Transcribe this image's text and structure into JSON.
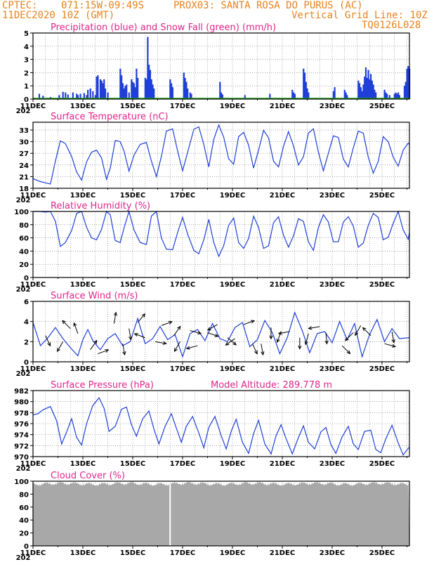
{
  "header": {
    "source": "CPTEC:",
    "coords": "071:15W-09:49S",
    "station": "PROX03: SANTA ROSA DO PURUS (AC)",
    "run": "11DEC2020 10Z (GMT)",
    "grid_note": "Vertical Grid Line: 10Z",
    "code": "TQ0126L028"
  },
  "x_axis": {
    "labels": [
      "11DEC",
      "13DEC",
      "15DEC",
      "17DEC",
      "19DEC",
      "21DEC",
      "23DEC",
      "25DEC"
    ],
    "range_days": [
      0,
      15.1
    ],
    "year_fragment": "202"
  },
  "colors": {
    "curve": "#1f3fd8",
    "snow": "#1aa01a",
    "title": "#e0258a",
    "header": "#e8821e",
    "cloud": "#a8a8a8"
  },
  "chart_data": [
    {
      "type": "bar",
      "title": "Precipitation (blue) and Snow Fall (green) (mm/h)",
      "ylim": [
        0,
        5
      ],
      "yticks": [
        0,
        1,
        2,
        3,
        4,
        5
      ],
      "series": [
        {
          "name": "Precipitation",
          "color": "#1f3fd8",
          "points": [
            [
              0.25,
              0.4
            ],
            [
              0.4,
              0.25
            ],
            [
              0.7,
              0.15
            ],
            [
              1.05,
              0.3
            ],
            [
              1.2,
              0.55
            ],
            [
              1.3,
              0.5
            ],
            [
              1.4,
              0.35
            ],
            [
              1.6,
              0.5
            ],
            [
              1.75,
              0.4
            ],
            [
              1.8,
              0.3
            ],
            [
              1.9,
              0.4
            ],
            [
              2.05,
              0.45
            ],
            [
              2.15,
              0.3
            ],
            [
              2.2,
              0.7
            ],
            [
              2.3,
              0.8
            ],
            [
              2.4,
              0.6
            ],
            [
              2.5,
              0.3
            ],
            [
              2.55,
              1.7
            ],
            [
              2.6,
              1.8
            ],
            [
              2.7,
              1.5
            ],
            [
              2.75,
              1.4
            ],
            [
              2.8,
              1.2
            ],
            [
              2.85,
              1.5
            ],
            [
              2.9,
              0.8
            ],
            [
              3.0,
              0.5
            ],
            [
              3.5,
              2.3
            ],
            [
              3.55,
              1.8
            ],
            [
              3.6,
              1.2
            ],
            [
              3.65,
              0.8
            ],
            [
              3.7,
              1.0
            ],
            [
              3.75,
              1.1
            ],
            [
              3.85,
              0.5
            ],
            [
              3.95,
              1.5
            ],
            [
              4.0,
              1.3
            ],
            [
              4.05,
              1.2
            ],
            [
              4.1,
              0.9
            ],
            [
              4.15,
              2.3
            ],
            [
              4.2,
              1.6
            ],
            [
              4.5,
              1.6
            ],
            [
              4.55,
              1.5
            ],
            [
              4.6,
              4.7
            ],
            [
              4.65,
              2.6
            ],
            [
              4.7,
              2.2
            ],
            [
              4.75,
              1.5
            ],
            [
              4.8,
              1.1
            ],
            [
              4.85,
              0.8
            ],
            [
              5.5,
              1.5
            ],
            [
              5.55,
              1.2
            ],
            [
              5.6,
              0.9
            ],
            [
              6.05,
              2.0
            ],
            [
              6.1,
              1.6
            ],
            [
              6.15,
              1.3
            ],
            [
              6.2,
              0.8
            ],
            [
              6.3,
              0.5
            ],
            [
              6.35,
              0.4
            ],
            [
              7.5,
              1.3
            ],
            [
              7.55,
              0.5
            ],
            [
              7.6,
              0.35
            ],
            [
              8.5,
              0.3
            ],
            [
              9.5,
              0.4
            ],
            [
              10.4,
              0.7
            ],
            [
              10.45,
              0.5
            ],
            [
              10.5,
              0.3
            ],
            [
              10.5,
              0.4
            ],
            [
              10.85,
              2.3
            ],
            [
              10.9,
              2.0
            ],
            [
              10.95,
              1.3
            ],
            [
              11.0,
              0.8
            ],
            [
              11.05,
              0.5
            ],
            [
              12.05,
              0.6
            ],
            [
              12.1,
              0.9
            ],
            [
              12.5,
              0.7
            ],
            [
              12.55,
              0.5
            ],
            [
              12.6,
              0.3
            ],
            [
              13.05,
              1.4
            ],
            [
              13.1,
              1.2
            ],
            [
              13.15,
              0.9
            ],
            [
              13.2,
              0.6
            ],
            [
              13.25,
              1.1
            ],
            [
              13.3,
              1.7
            ],
            [
              13.35,
              2.4
            ],
            [
              13.4,
              1.6
            ],
            [
              13.45,
              2.2
            ],
            [
              13.5,
              1.5
            ],
            [
              13.55,
              1.9
            ],
            [
              13.6,
              1.4
            ],
            [
              13.65,
              1.1
            ],
            [
              13.7,
              0.7
            ],
            [
              13.75,
              0.5
            ],
            [
              14.1,
              0.7
            ],
            [
              14.15,
              0.5
            ],
            [
              14.2,
              0.4
            ],
            [
              14.3,
              0.3
            ],
            [
              14.5,
              0.4
            ],
            [
              14.55,
              0.5
            ],
            [
              14.6,
              0.4
            ],
            [
              14.65,
              0.5
            ],
            [
              14.7,
              0.3
            ],
            [
              14.9,
              1.0
            ],
            [
              14.95,
              1.3
            ],
            [
              15.0,
              2.3
            ],
            [
              15.05,
              2.5
            ],
            [
              15.1,
              2.3
            ]
          ]
        },
        {
          "name": "Snow Fall",
          "color": "#1aa01a",
          "values": "all zero"
        }
      ]
    },
    {
      "type": "line",
      "title": "Surface Temperature (nC)",
      "ylim": [
        18,
        35
      ],
      "yticks": [
        18,
        21,
        24,
        27,
        30,
        33
      ],
      "x": [
        0,
        0.25,
        0.5,
        0.7,
        0.9,
        1.1,
        1.3,
        1.55,
        1.75,
        1.95,
        2.15,
        2.35,
        2.55,
        2.75,
        2.95,
        3.1,
        3.3,
        3.5,
        3.65,
        3.85,
        4.05,
        4.3,
        4.55,
        4.75,
        4.95,
        5.15,
        5.35,
        5.6,
        5.8,
        6.0,
        6.2,
        6.45,
        6.65,
        6.85,
        7.05,
        7.25,
        7.45,
        7.65,
        7.85,
        8.05,
        8.25,
        8.45,
        8.65,
        8.85,
        9.05,
        9.25,
        9.45,
        9.65,
        9.85,
        10.05,
        10.25,
        10.45,
        10.65,
        10.85,
        11.05,
        11.25,
        11.45,
        11.65,
        11.85,
        12.05,
        12.25,
        12.45,
        12.65,
        12.85,
        13.05,
        13.25,
        13.45,
        13.65,
        13.85,
        14.05,
        14.25,
        14.45,
        14.65,
        14.85,
        15.05,
        15.1
      ],
      "y": [
        20.5,
        19.8,
        19.4,
        19.1,
        25,
        30.2,
        29.5,
        26.2,
        22.2,
        20.1,
        24.8,
        27.3,
        27.8,
        25.8,
        20.3,
        23.2,
        30.3,
        30.0,
        27.6,
        22.4,
        26.5,
        29.3,
        29.8,
        25.0,
        21.0,
        26.2,
        32.7,
        33.3,
        27.6,
        22.5,
        27.2,
        33.2,
        33.8,
        29.3,
        23.5,
        30.6,
        34.3,
        31.2,
        25.6,
        24.2,
        31.3,
        32.4,
        29.1,
        23.2,
        27.8,
        32.9,
        31.0,
        25.0,
        23.5,
        28.8,
        32.6,
        28.9,
        24.0,
        26.1,
        32.2,
        33.3,
        27.3,
        22.5,
        27.0,
        31.5,
        31.1,
        25.5,
        23.5,
        28.4,
        32.7,
        32.2,
        26.0,
        21.9,
        24.9,
        31.3,
        30.0,
        26.0,
        23.7,
        27.8,
        29.6,
        29.3
      ]
    },
    {
      "type": "line",
      "title": "Relative Humidity (%)",
      "ylim": [
        0,
        100
      ],
      "yticks": [
        0,
        20,
        40,
        60,
        80,
        100
      ],
      "x": [
        0,
        0.25,
        0.5,
        0.7,
        0.9,
        1.1,
        1.3,
        1.55,
        1.75,
        1.95,
        2.15,
        2.35,
        2.55,
        2.75,
        2.95,
        3.1,
        3.3,
        3.5,
        3.65,
        3.85,
        4.05,
        4.3,
        4.55,
        4.75,
        4.95,
        5.15,
        5.35,
        5.6,
        5.8,
        6.0,
        6.2,
        6.45,
        6.65,
        6.85,
        7.05,
        7.25,
        7.45,
        7.65,
        7.85,
        8.05,
        8.25,
        8.45,
        8.65,
        8.85,
        9.05,
        9.25,
        9.45,
        9.65,
        9.85,
        10.05,
        10.25,
        10.45,
        10.65,
        10.85,
        11.05,
        11.25,
        11.45,
        11.65,
        11.85,
        12.05,
        12.25,
        12.45,
        12.65,
        12.85,
        13.05,
        13.25,
        13.45,
        13.65,
        13.85,
        14.05,
        14.25,
        14.45,
        14.65,
        14.85,
        15.05,
        15.1
      ],
      "y": [
        100,
        100,
        99,
        100,
        85,
        47,
        53,
        71,
        97,
        100,
        76,
        60,
        57,
        73,
        100,
        95,
        56,
        53,
        75,
        100,
        72,
        53,
        50,
        93,
        100,
        60,
        43,
        42,
        68,
        91,
        66,
        41,
        36,
        57,
        88,
        53,
        32,
        48,
        79,
        90,
        53,
        44,
        59,
        93,
        76,
        44,
        48,
        83,
        92,
        64,
        46,
        63,
        89,
        85,
        54,
        41,
        76,
        95,
        84,
        54,
        54,
        84,
        92,
        78,
        46,
        52,
        79,
        97,
        91,
        57,
        61,
        82,
        100,
        72,
        58,
        68
      ]
    },
    {
      "type": "line",
      "title": "Surface Wind (m/s)",
      "ylim": [
        0,
        6
      ],
      "yticks": [
        0,
        2,
        4,
        6
      ],
      "x": [
        0,
        0.3,
        0.6,
        0.9,
        1.2,
        1.5,
        1.8,
        2.0,
        2.2,
        2.4,
        2.7,
        3.0,
        3.3,
        3.6,
        3.9,
        4.2,
        4.5,
        4.8,
        5.1,
        5.4,
        5.7,
        6.0,
        6.3,
        6.6,
        6.9,
        7.2,
        7.5,
        7.8,
        8.1,
        8.4,
        8.7,
        9.0,
        9.3,
        9.6,
        9.9,
        10.2,
        10.5,
        10.8,
        11.1,
        11.4,
        11.7,
        12.0,
        12.3,
        12.6,
        12.9,
        13.2,
        13.5,
        13.8,
        14.1,
        14.4,
        14.7,
        15.1
      ],
      "y": [
        3.9,
        1.6,
        2.4,
        3.4,
        2.3,
        1.4,
        0.6,
        2.2,
        3.2,
        2.1,
        1.2,
        2.3,
        2.8,
        1.6,
        2.0,
        4.3,
        1.8,
        2.3,
        3.5,
        2.2,
        2.7,
        0.5,
        2.8,
        3.2,
        2.1,
        3.8,
        2.3,
        2.0,
        3.4,
        3.9,
        1.5,
        2.2,
        4.1,
        2.9,
        0.8,
        2.4,
        4.9,
        3.1,
        0.9,
        2.8,
        3.0,
        1.9,
        4.0,
        2.2,
        3.8,
        0.5,
        2.7,
        4.2,
        2.0,
        3.3,
        2.3,
        2.4
      ],
      "arrows": [
        [
          0.5,
          2.6,
          155
        ],
        [
          1.2,
          2.0,
          210
        ],
        [
          1.5,
          3.3,
          315
        ],
        [
          1.8,
          2.8,
          340
        ],
        [
          2.3,
          1.2,
          35
        ],
        [
          2.6,
          0.8,
          70
        ],
        [
          3.25,
          3.8,
          10
        ],
        [
          3.6,
          1.8,
          170
        ],
        [
          3.85,
          3.3,
          170
        ],
        [
          4.2,
          3.9,
          40
        ],
        [
          4.5,
          2.4,
          290
        ],
        [
          4.9,
          2.0,
          100
        ],
        [
          5.15,
          3.6,
          70
        ],
        [
          5.65,
          2.6,
          35
        ],
        [
          5.9,
          2.0,
          210
        ],
        [
          6.3,
          3.1,
          105
        ],
        [
          6.6,
          1.6,
          255
        ],
        [
          7.0,
          2.9,
          110
        ],
        [
          7.4,
          3.7,
          240
        ],
        [
          7.8,
          2.4,
          130
        ],
        [
          8.1,
          2.3,
          235
        ],
        [
          8.45,
          3.7,
          70
        ],
        [
          8.8,
          1.8,
          155
        ],
        [
          9.15,
          1.8,
          170
        ],
        [
          9.55,
          3.4,
          180
        ],
        [
          9.95,
          3.0,
          200
        ],
        [
          10.3,
          3.0,
          260
        ],
        [
          10.7,
          2.4,
          180
        ],
        [
          11.05,
          2.8,
          195
        ],
        [
          11.5,
          3.5,
          260
        ],
        [
          11.75,
          2.9,
          175
        ],
        [
          12.4,
          1.6,
          135
        ],
        [
          12.85,
          2.9,
          225
        ],
        [
          13.15,
          3.6,
          210
        ],
        [
          13.55,
          2.6,
          315
        ],
        [
          14.1,
          1.8,
          105
        ],
        [
          14.4,
          3.0,
          170
        ]
      ]
    },
    {
      "type": "line",
      "title": "Surface Pressure (hPa)",
      "subtitle": "Model Altitude: 289.778  m",
      "ylim": [
        970,
        982
      ],
      "yticks": [
        970,
        972,
        974,
        976,
        978,
        980,
        982
      ],
      "x": [
        0,
        0.2,
        0.4,
        0.7,
        0.95,
        1.15,
        1.35,
        1.55,
        1.75,
        1.95,
        2.15,
        2.4,
        2.65,
        2.85,
        3.05,
        3.3,
        3.55,
        3.75,
        3.95,
        4.15,
        4.4,
        4.65,
        4.85,
        5.05,
        5.3,
        5.55,
        5.75,
        5.95,
        6.15,
        6.4,
        6.65,
        6.85,
        7.05,
        7.3,
        7.55,
        7.75,
        7.95,
        8.15,
        8.4,
        8.65,
        8.85,
        9.05,
        9.3,
        9.55,
        9.75,
        9.95,
        10.15,
        10.4,
        10.65,
        10.85,
        11.05,
        11.3,
        11.55,
        11.75,
        11.95,
        12.15,
        12.4,
        12.65,
        12.85,
        13.05,
        13.3,
        13.55,
        13.75,
        13.95,
        14.15,
        14.4,
        14.65,
        14.85,
        15.05,
        15.1
      ],
      "y": [
        977.6,
        977.8,
        978.5,
        979.1,
        976.5,
        972.3,
        974.5,
        976.9,
        973.5,
        972.1,
        976.0,
        979.3,
        980.7,
        978.8,
        974.6,
        975.5,
        978.6,
        979.0,
        975.8,
        973.7,
        976.9,
        978.3,
        975.0,
        972.3,
        975.5,
        977.8,
        975.2,
        972.6,
        975.5,
        977.3,
        974.3,
        971.6,
        975.3,
        977.3,
        973.8,
        971.4,
        974.6,
        976.8,
        972.6,
        970.6,
        974.2,
        976.6,
        972.3,
        970.5,
        973.8,
        975.8,
        973.3,
        970.5,
        973.5,
        975.6,
        972.6,
        971.4,
        974.5,
        975.3,
        972.2,
        970.6,
        973.6,
        975.5,
        972.3,
        971.3,
        974.6,
        974.8,
        971.3,
        970.7,
        973.2,
        975.7,
        972.5,
        970.3,
        971.5,
        971.7
      ]
    },
    {
      "type": "area",
      "title": "Cloud Cover (%)",
      "ylim": [
        0,
        100
      ],
      "yticks": [
        0,
        20,
        40,
        60,
        80,
        100
      ],
      "mean_value": 96,
      "gap_at_day": 5.5
    }
  ]
}
